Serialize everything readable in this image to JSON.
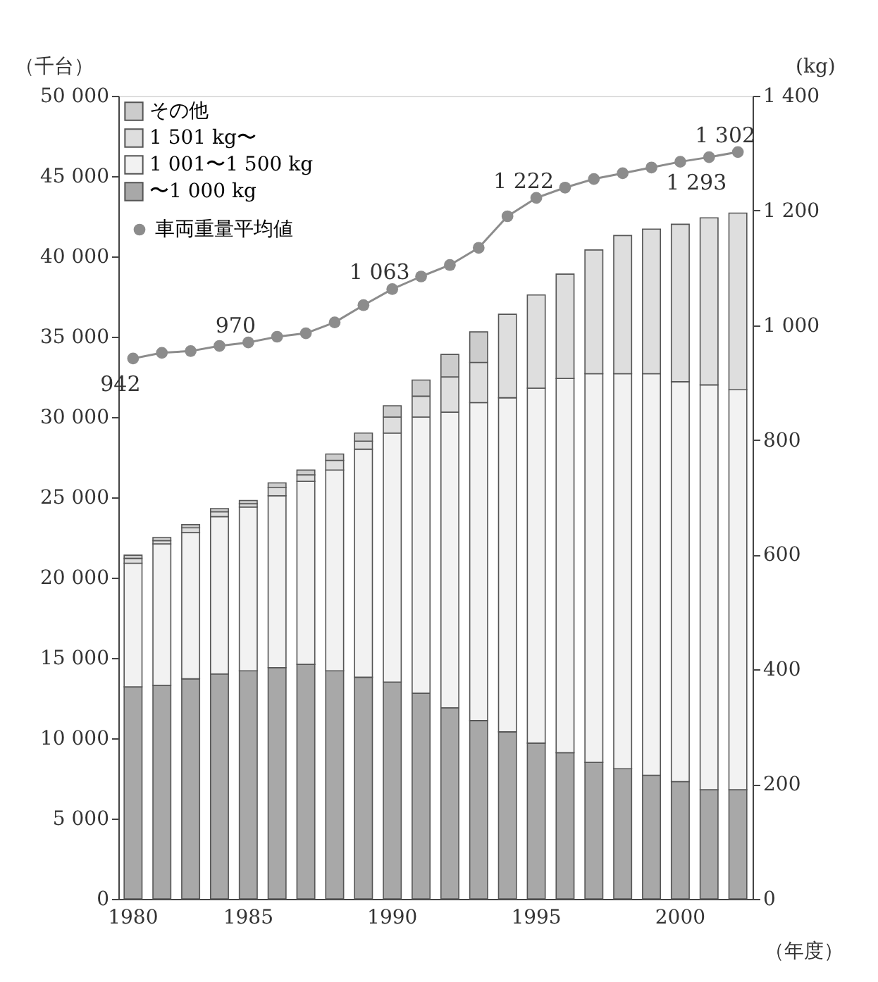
{
  "chart_data": {
    "type": "bar",
    "stacked": true,
    "ylabel": "（千台）",
    "y2label": "(kg)",
    "xlabel": "（年度）",
    "categories": [
      "1980",
      null,
      null,
      null,
      "1985",
      null,
      null,
      null,
      null,
      "1990",
      null,
      null,
      null,
      null,
      "1995",
      null,
      null,
      null,
      null,
      "2000",
      null,
      null
    ],
    "series": [
      {
        "name": "〜1 000 kg",
        "color": "#a8a8a8",
        "values": [
          13200,
          13300,
          13700,
          14000,
          14200,
          14400,
          14600,
          14200,
          13800,
          13500,
          12800,
          11900,
          11100,
          10400,
          9700,
          9100,
          8500,
          8100,
          7700,
          7300,
          6800,
          6800
        ]
      },
      {
        "name": "1 001〜1 500 kg",
        "color": "#f2f2f2",
        "values": [
          7700,
          8800,
          9100,
          9800,
          10200,
          10700,
          11400,
          12500,
          14200,
          15500,
          17200,
          18400,
          19800,
          20800,
          22100,
          23300,
          24200,
          24600,
          25000,
          24900,
          25200,
          24900
        ]
      },
      {
        "name": "1 501 kg〜",
        "color": "#dedede",
        "values": [
          300,
          200,
          300,
          300,
          200,
          500,
          400,
          600,
          500,
          1000,
          1300,
          2200,
          2500,
          5200,
          5800,
          6500,
          7700,
          8600,
          9000,
          9800,
          10400,
          11000
        ]
      },
      {
        "name": "その他",
        "color": "#cccccc",
        "values": [
          200,
          200,
          200,
          200,
          200,
          300,
          300,
          400,
          500,
          700,
          1000,
          1400,
          1900,
          null,
          null,
          null,
          null,
          null,
          null,
          null,
          null,
          null
        ]
      },
      {
        "name": "車両重量平均値",
        "type": "line",
        "axis": "y2",
        "marker": "circle",
        "color": "#8c8c8c",
        "values": [
          942,
          952,
          955,
          964,
          970,
          980,
          986,
          1005,
          1035,
          1063,
          1085,
          1105,
          1135,
          1190,
          1222,
          1240,
          1255,
          1265,
          1275,
          1285,
          1293,
          1302
        ],
        "value_labels": [
          "942",
          null,
          null,
          null,
          "970",
          null,
          null,
          null,
          null,
          "1 063",
          null,
          null,
          null,
          null,
          "1 222",
          null,
          null,
          null,
          null,
          null,
          "1 293",
          "1 302"
        ]
      }
    ],
    "ylim": [
      0,
      50000
    ],
    "yticks": [
      0,
      {
        "value": 5000,
        "label": "5 000"
      },
      {
        "value": 10000,
        "label": "10 000"
      },
      {
        "value": 15000,
        "label": "15 000"
      },
      {
        "value": 20000,
        "label": "20 000"
      },
      {
        "value": 25000,
        "label": "25 000"
      },
      {
        "value": 30000,
        "label": "30 000"
      },
      {
        "value": 35000,
        "label": "35 000"
      },
      {
        "value": 40000,
        "label": "40 000"
      },
      {
        "value": 45000,
        "label": "45 000"
      },
      {
        "value": 50000,
        "label": "50 000"
      }
    ],
    "y2lim": [
      0,
      1400
    ],
    "y2ticks": [
      0,
      200,
      400,
      600,
      800,
      {
        "value": 1000,
        "label": "1 000"
      },
      {
        "value": 1200,
        "label": "1 200"
      },
      {
        "value": 1400,
        "label": "1 400"
      }
    ],
    "legend": "top left",
    "grid": false
  }
}
